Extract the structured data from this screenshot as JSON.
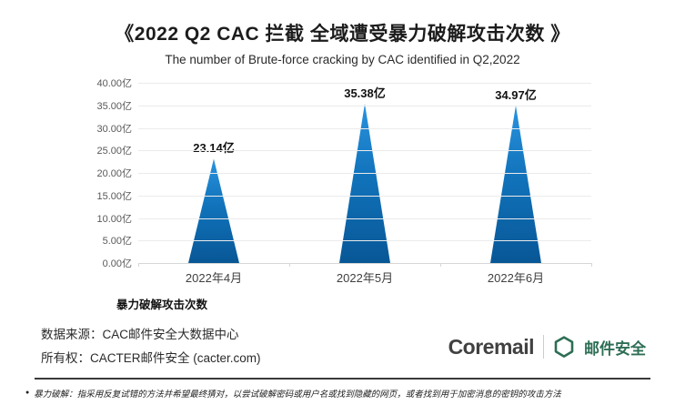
{
  "header": {
    "title": "《2022 Q2 CAC 拦截 全域遭受暴力破解攻击次数 》",
    "subtitle": "The number of Brute-force cracking by CAC identified in Q2,2022"
  },
  "chart_data": {
    "type": "bar",
    "bar_shape": "triangle",
    "categories": [
      "2022年4月",
      "2022年5月",
      "2022年6月"
    ],
    "values": [
      23.14,
      35.38,
      34.97
    ],
    "data_labels": [
      "23.14亿",
      "35.38亿",
      "34.97亿"
    ],
    "unit": "亿",
    "series_name": "暴力破解攻击次数",
    "ylim": [
      0,
      40
    ],
    "y_tick_step": 5,
    "y_ticks": [
      "40.00亿",
      "35.00亿",
      "30.00亿",
      "25.00亿",
      "20.00亿",
      "15.00亿",
      "10.00亿",
      "5.00亿",
      "0.00亿"
    ],
    "grid": true,
    "legend_position": "bottom-left",
    "colors": {
      "bar_top": "#2a93de",
      "bar_mid": "#1173bb",
      "bar_bottom": "#085796"
    }
  },
  "legend": {
    "label": "暴力破解攻击次数"
  },
  "footer": {
    "source": "数据来源：CAC邮件安全大数据中心",
    "ownership": "所有权：CACTER邮件安全 (cacter.com)",
    "brand": {
      "coremail_wordmark": "Coremail",
      "product_name": "邮件安全",
      "shield_icon": "hexagon-shield-icon",
      "brand_green": "#2e6e55",
      "wordmark_color": "#414141"
    },
    "footnote": "暴力破解：指采用反复试错的方法并希望最终猜对，以尝试破解密码或用户名或找到隐藏的网页，或者找到用于加密消息的密钥的攻击方法"
  }
}
